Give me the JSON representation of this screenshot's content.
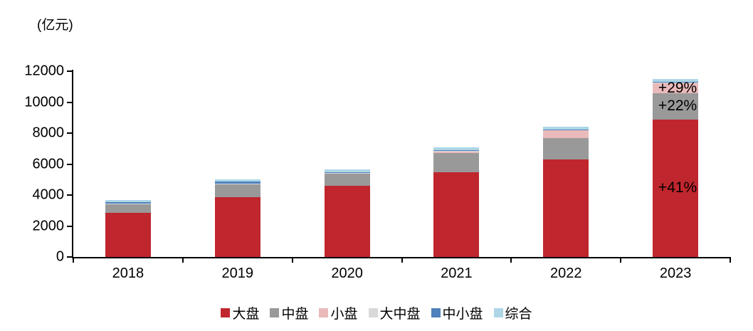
{
  "chart_data": {
    "type": "bar",
    "stacked": true,
    "unit_label": "(亿元)",
    "categories": [
      "2018",
      "2019",
      "2020",
      "2021",
      "2022",
      "2023"
    ],
    "series": [
      {
        "name": "大盘",
        "color": "#C0262D",
        "values": [
          2850,
          3840,
          4580,
          5460,
          6300,
          8880
        ]
      },
      {
        "name": "中盘",
        "color": "#999999",
        "values": [
          580,
          900,
          790,
          1250,
          1390,
          1700
        ]
      },
      {
        "name": "小盘",
        "color": "#EABABB",
        "values": [
          0,
          0,
          40,
          140,
          510,
          660
        ]
      },
      {
        "name": "大中盘",
        "color": "#D9D9D9",
        "values": [
          10,
          10,
          10,
          20,
          20,
          30
        ]
      },
      {
        "name": "中小盘",
        "color": "#4F81BD",
        "values": [
          90,
          110,
          50,
          20,
          20,
          30
        ]
      },
      {
        "name": "综合",
        "color": "#ADD6E6",
        "values": [
          150,
          150,
          185,
          185,
          185,
          200
        ]
      }
    ],
    "ylim": [
      0,
      12000
    ],
    "yticks": [
      0,
      2000,
      4000,
      6000,
      8000,
      10000,
      12000
    ],
    "grid": false,
    "legend_position": "bottom",
    "annotations": [
      {
        "category": "2023",
        "series": "小盘",
        "label": "+29%"
      },
      {
        "category": "2023",
        "series": "中盘",
        "label": "+22%"
      },
      {
        "category": "2023",
        "series": "大盘",
        "label": "+41%"
      }
    ],
    "axis_color": "#000000",
    "text_color": "#000000"
  }
}
